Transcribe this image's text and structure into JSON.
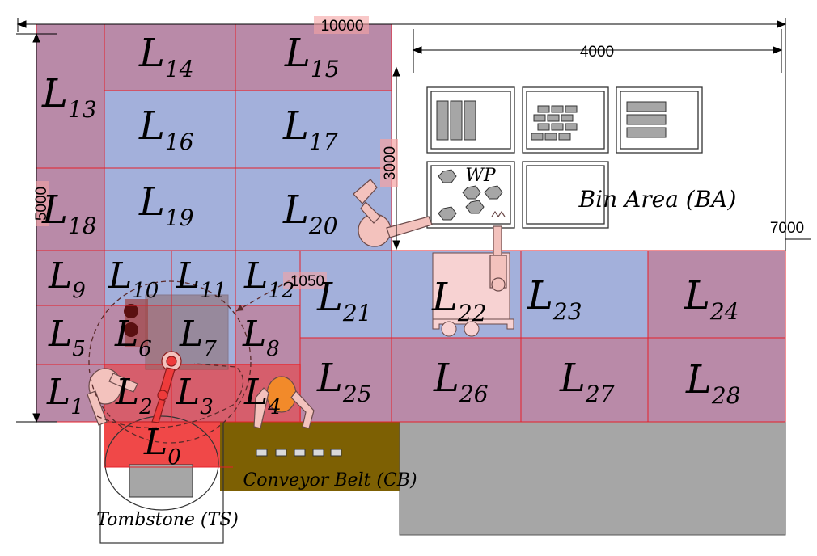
{
  "diagram": {
    "dimensions": {
      "overall_width": "10000",
      "bin_area_width": "4000",
      "overall_height": "5000",
      "bin_area_height": "3000",
      "right_extent": "7000",
      "robot_reach": "1050"
    },
    "zone_letter": "L",
    "zones": [
      {
        "id": "0"
      },
      {
        "id": "1"
      },
      {
        "id": "2"
      },
      {
        "id": "3"
      },
      {
        "id": "4"
      },
      {
        "id": "5"
      },
      {
        "id": "6"
      },
      {
        "id": "7"
      },
      {
        "id": "8"
      },
      {
        "id": "9"
      },
      {
        "id": "10"
      },
      {
        "id": "11"
      },
      {
        "id": "12"
      },
      {
        "id": "13"
      },
      {
        "id": "14"
      },
      {
        "id": "15"
      },
      {
        "id": "16"
      },
      {
        "id": "17"
      },
      {
        "id": "18"
      },
      {
        "id": "19"
      },
      {
        "id": "20"
      },
      {
        "id": "21"
      },
      {
        "id": "22"
      },
      {
        "id": "23"
      },
      {
        "id": "24"
      },
      {
        "id": "25"
      },
      {
        "id": "26"
      },
      {
        "id": "27"
      },
      {
        "id": "28"
      }
    ],
    "labels": {
      "workpieces": "WP",
      "bin_area": "Bin Area (BA)",
      "conveyor_belt": "Conveyor Belt (CB)",
      "tombstone": "Tombstone (TS)"
    },
    "colors": {
      "zone_mauve": "#b98aa8",
      "zone_blue": "#a3b0db",
      "zone_grid_line": "#e5202a",
      "active_zone_red": "#ee3b3b",
      "conveyor": "#7d6003",
      "machine_gray": "#a6a6a6",
      "robot_pink": "#f3c2bd",
      "robot_orange": "#f28a2a",
      "dimension_highlight": "#f5a3a3"
    }
  }
}
